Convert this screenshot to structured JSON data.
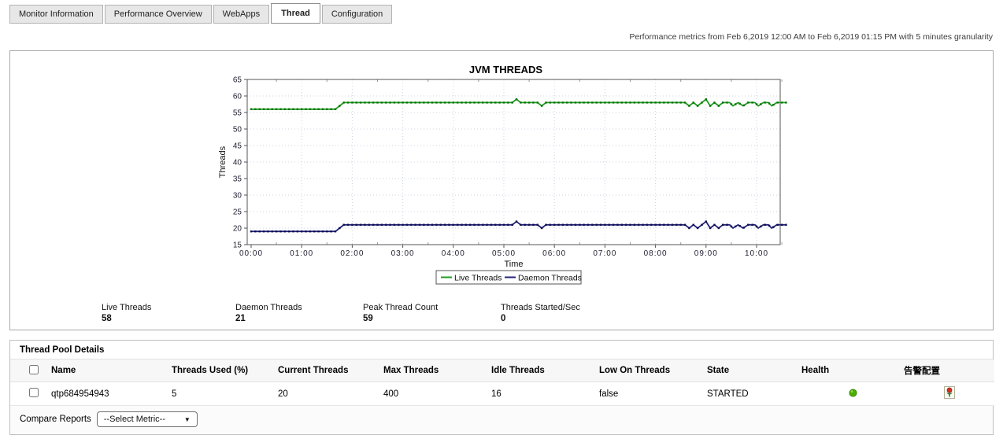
{
  "tabs": [
    {
      "label": "Monitor Information",
      "active": false
    },
    {
      "label": "Performance Overview",
      "active": false
    },
    {
      "label": "WebApps",
      "active": false
    },
    {
      "label": "Thread",
      "active": true
    },
    {
      "label": "Configuration",
      "active": false
    }
  ],
  "header_note": "Performance metrics from Feb 6,2019 12:00 AM to Feb 6,2019 01:15 PM with 5 minutes granularity",
  "chart_data": {
    "type": "line",
    "title": "JVM THREADS",
    "xlabel": "Time",
    "ylabel": "Threads",
    "ylim": [
      15,
      65
    ],
    "y_ticks": [
      15,
      20,
      25,
      30,
      35,
      40,
      45,
      50,
      55,
      60,
      65
    ],
    "x_tick_labels": [
      "00:00",
      "01:00",
      "02:00",
      "03:00",
      "04:00",
      "05:00",
      "06:00",
      "07:00",
      "08:00",
      "09:00",
      "10:00"
    ],
    "x_tick_minutes": [
      0,
      60,
      120,
      180,
      240,
      300,
      360,
      420,
      480,
      540,
      600
    ],
    "x_max_minutes": 641,
    "granularity_minutes": 5,
    "grid": true,
    "legend_position": "bottom",
    "plot_border_color": "#555555",
    "grid_color": "#ccd3e2",
    "series": [
      {
        "name": "Live Threads",
        "color": "#1f9e1f",
        "marker_color": "#0a700a",
        "points": [
          [
            0,
            56
          ],
          [
            100,
            56
          ],
          [
            110,
            58
          ],
          [
            310,
            58
          ],
          [
            315,
            59
          ],
          [
            320,
            58
          ],
          [
            340,
            58
          ],
          [
            345,
            57
          ],
          [
            350,
            58
          ],
          [
            515,
            58
          ],
          [
            520,
            57
          ],
          [
            525,
            58
          ],
          [
            530,
            57
          ],
          [
            535,
            58
          ],
          [
            540,
            59
          ],
          [
            545,
            57
          ],
          [
            550,
            58
          ],
          [
            555,
            57
          ],
          [
            560,
            58
          ],
          [
            568,
            58
          ],
          [
            572,
            57
          ],
          [
            578,
            58
          ],
          [
            584,
            57
          ],
          [
            590,
            58
          ],
          [
            598,
            58
          ],
          [
            602,
            57
          ],
          [
            608,
            58
          ],
          [
            614,
            58
          ],
          [
            618,
            57
          ],
          [
            624,
            58
          ],
          [
            635,
            58
          ]
        ]
      },
      {
        "name": "Daemon Threads",
        "color": "#23237e",
        "marker_color": "#0d0d4a",
        "points": [
          [
            0,
            19
          ],
          [
            100,
            19
          ],
          [
            110,
            21
          ],
          [
            310,
            21
          ],
          [
            315,
            22
          ],
          [
            320,
            21
          ],
          [
            340,
            21
          ],
          [
            345,
            20
          ],
          [
            350,
            21
          ],
          [
            515,
            21
          ],
          [
            520,
            20
          ],
          [
            525,
            21
          ],
          [
            530,
            20
          ],
          [
            535,
            21
          ],
          [
            540,
            22
          ],
          [
            545,
            20
          ],
          [
            550,
            21
          ],
          [
            555,
            20
          ],
          [
            560,
            21
          ],
          [
            568,
            21
          ],
          [
            572,
            20
          ],
          [
            578,
            21
          ],
          [
            584,
            20
          ],
          [
            590,
            21
          ],
          [
            598,
            21
          ],
          [
            602,
            20
          ],
          [
            608,
            21
          ],
          [
            614,
            21
          ],
          [
            618,
            20
          ],
          [
            624,
            21
          ],
          [
            635,
            21
          ]
        ]
      }
    ]
  },
  "summary_stats": [
    {
      "label": "Live Threads",
      "value": "58"
    },
    {
      "label": "Daemon Threads",
      "value": "21"
    },
    {
      "label": "Peak Thread Count",
      "value": "59"
    },
    {
      "label": "Threads Started/Sec",
      "value": "0"
    }
  ],
  "thread_pool": {
    "title": "Thread Pool Details",
    "columns": {
      "name": "Name",
      "threads_used": "Threads Used  (%)",
      "current": "Current Threads",
      "max": "Max Threads",
      "idle": "Idle Threads",
      "low_on": "Low On Threads",
      "state": "State",
      "health": "Health",
      "alarm_config": "告警配置"
    },
    "rows": [
      {
        "name": "qtp684954943",
        "threads_used": "5",
        "current": "20",
        "max": "400",
        "idle": "16",
        "low_on": "false",
        "state": "STARTED",
        "health": "good",
        "health_color": "#4caf00"
      }
    ]
  },
  "compare_reports": {
    "label": "Compare Reports",
    "selected": "--Select Metric--"
  }
}
